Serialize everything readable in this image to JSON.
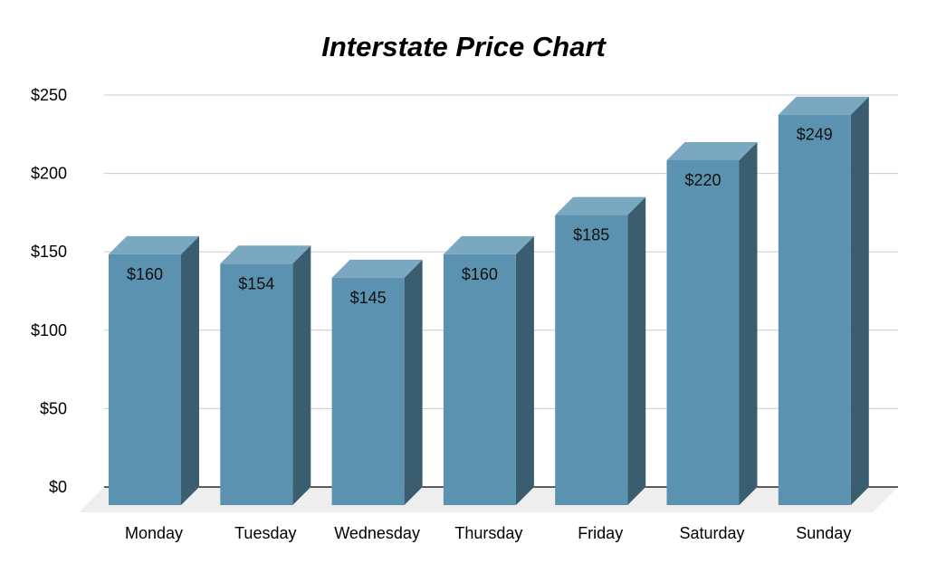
{
  "chart_data": {
    "type": "bar",
    "title": "Interstate Price Chart",
    "categories": [
      "Monday",
      "Tuesday",
      "Wednesday",
      "Thursday",
      "Friday",
      "Saturday",
      "Sunday"
    ],
    "values": [
      160,
      154,
      145,
      160,
      185,
      220,
      249
    ],
    "data_labels": [
      "$160",
      "$154",
      "$145",
      "$160",
      "$185",
      "$220",
      "$249"
    ],
    "y_ticks": [
      0,
      50,
      100,
      150,
      200,
      250
    ],
    "y_tick_labels": [
      "$0",
      "$50",
      "$100",
      "$150",
      "$200",
      "$250"
    ],
    "ylim": [
      0,
      250
    ],
    "xlabel": "",
    "ylabel": "",
    "grid": true,
    "legend": "none",
    "style": "3d-column",
    "colors": {
      "bar_front": "#5b92b0",
      "bar_top": "#7aa8c1",
      "bar_side": "#3b5d70",
      "floor": "#eeeeee"
    }
  }
}
